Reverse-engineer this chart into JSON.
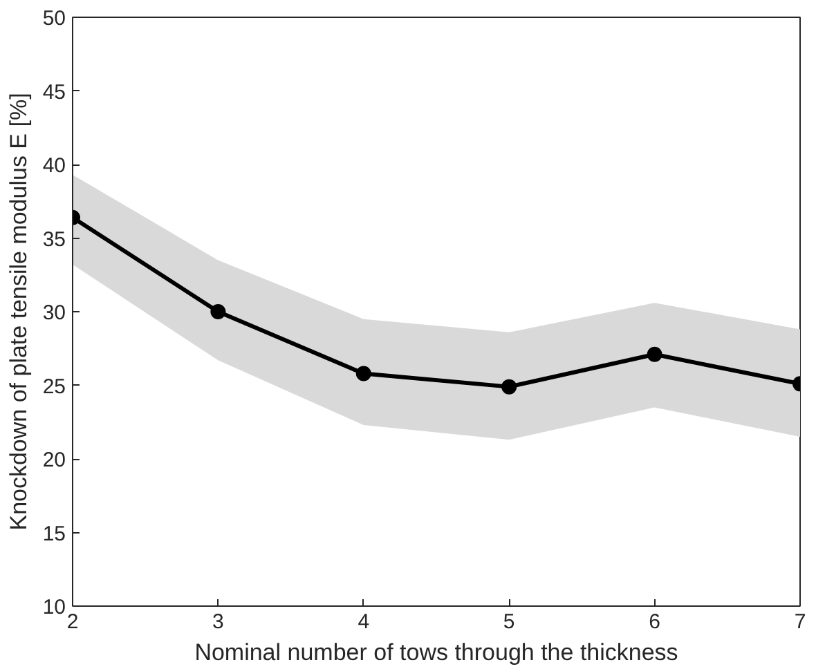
{
  "chart_data": {
    "type": "line",
    "xlabel": "Nominal number of tows through the thickness",
    "ylabel": "Knockdown of plate tensile modulus E [%]",
    "x": [
      2,
      3,
      4,
      5,
      6,
      7
    ],
    "series": [
      {
        "color": "#000000",
        "values": [
          36.4,
          30.0,
          25.8,
          24.9,
          27.1,
          25.1
        ],
        "lower": [
          33.2,
          26.7,
          22.3,
          21.3,
          23.5,
          21.5
        ],
        "upper": [
          39.3,
          33.5,
          29.5,
          28.6,
          30.6,
          28.8
        ]
      }
    ],
    "xlim": [
      2,
      7
    ],
    "xticks": [
      2,
      3,
      4,
      5,
      6,
      7
    ],
    "ylim": [
      10,
      50
    ],
    "yticks": [
      10,
      15,
      20,
      25,
      30,
      35,
      40,
      45,
      50
    ],
    "marker": "circle",
    "line_style": "solid",
    "grid": false
  }
}
